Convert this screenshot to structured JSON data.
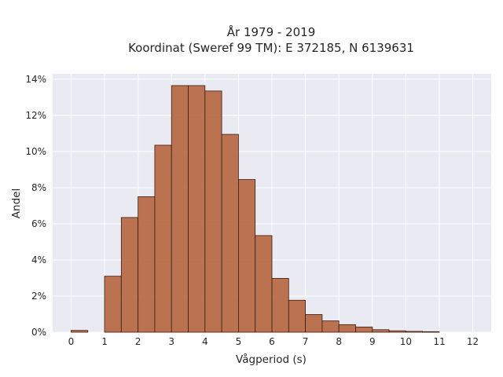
{
  "chart_data": {
    "type": "bar",
    "title": "År 1979 - 2019",
    "subtitle": "Koordinat (Sweref 99 TM): E 372185, N 6139631",
    "xlabel": "Vågperiod (s)",
    "ylabel": "Andel",
    "bin_width": 0.5,
    "bins": [
      {
        "start": 0.0,
        "value": 0.1
      },
      {
        "start": 1.0,
        "value": 3.1
      },
      {
        "start": 1.5,
        "value": 6.35
      },
      {
        "start": 2.0,
        "value": 7.5
      },
      {
        "start": 2.5,
        "value": 10.35
      },
      {
        "start": 3.0,
        "value": 13.65
      },
      {
        "start": 3.5,
        "value": 13.65
      },
      {
        "start": 4.0,
        "value": 13.35
      },
      {
        "start": 4.5,
        "value": 10.95
      },
      {
        "start": 5.0,
        "value": 8.45
      },
      {
        "start": 5.5,
        "value": 5.35
      },
      {
        "start": 6.0,
        "value": 2.98
      },
      {
        "start": 6.5,
        "value": 1.77
      },
      {
        "start": 7.0,
        "value": 0.98
      },
      {
        "start": 7.5,
        "value": 0.63
      },
      {
        "start": 8.0,
        "value": 0.42
      },
      {
        "start": 8.5,
        "value": 0.29
      },
      {
        "start": 9.0,
        "value": 0.14
      },
      {
        "start": 9.5,
        "value": 0.08
      },
      {
        "start": 10.0,
        "value": 0.05
      },
      {
        "start": 10.5,
        "value": 0.03
      }
    ],
    "xticks": [
      "0",
      "1",
      "2",
      "3",
      "4",
      "5",
      "6",
      "7",
      "8",
      "9",
      "10",
      "11",
      "12"
    ],
    "yticks": [
      "0%",
      "2%",
      "4%",
      "6%",
      "8%",
      "10%",
      "12%",
      "14%"
    ],
    "xlim": [
      -0.55,
      12.55
    ],
    "ylim": [
      0,
      14.3
    ],
    "grid": true,
    "colors": {
      "bar_fill": "#b5653e",
      "bar_edge": "#3d1e10",
      "plot_background": "#eaeaf2",
      "grid": "#ffffff"
    }
  }
}
